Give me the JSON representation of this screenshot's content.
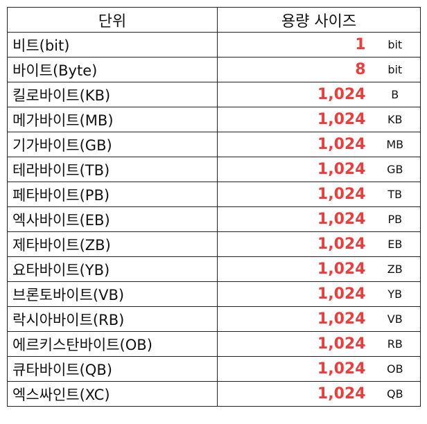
{
  "header": {
    "unit_label": "단위",
    "size_label": "용량 사이즈"
  },
  "rows": [
    {
      "name": "비트(bit)",
      "value": "1",
      "suffix": "bit"
    },
    {
      "name": "바이트(Byte)",
      "value": "8",
      "suffix": "bit"
    },
    {
      "name": "킬로바이트(KB)",
      "value": "1,024",
      "suffix": "B"
    },
    {
      "name": "메가바이트(MB)",
      "value": "1,024",
      "suffix": "KB"
    },
    {
      "name": "기가바이트(GB)",
      "value": "1,024",
      "suffix": "MB"
    },
    {
      "name": "테라바이트(TB)",
      "value": "1,024",
      "suffix": "GB"
    },
    {
      "name": "페타바이트(PB)",
      "value": "1,024",
      "suffix": "TB"
    },
    {
      "name": "엑사바이트(EB)",
      "value": "1,024",
      "suffix": "PB"
    },
    {
      "name": "제타바이트(ZB)",
      "value": "1,024",
      "suffix": "EB"
    },
    {
      "name": "요타바이트(YB)",
      "value": "1,024",
      "suffix": "ZB"
    },
    {
      "name": "브론토바이트(VB)",
      "value": "1,024",
      "suffix": "YB"
    },
    {
      "name": "락시아바이트(RB)",
      "value": "1,024",
      "suffix": "VB"
    },
    {
      "name": "에르키스탄바이트(OB)",
      "value": "1,024",
      "suffix": "RB"
    },
    {
      "name": "큐타바이트(QB)",
      "value": "1,024",
      "suffix": "OB"
    },
    {
      "name": "엑스싸인트(XC)",
      "value": "1,024",
      "suffix": "QB"
    }
  ],
  "colors": {
    "value_text": "#f03b3b",
    "grid_line": "#222222"
  }
}
